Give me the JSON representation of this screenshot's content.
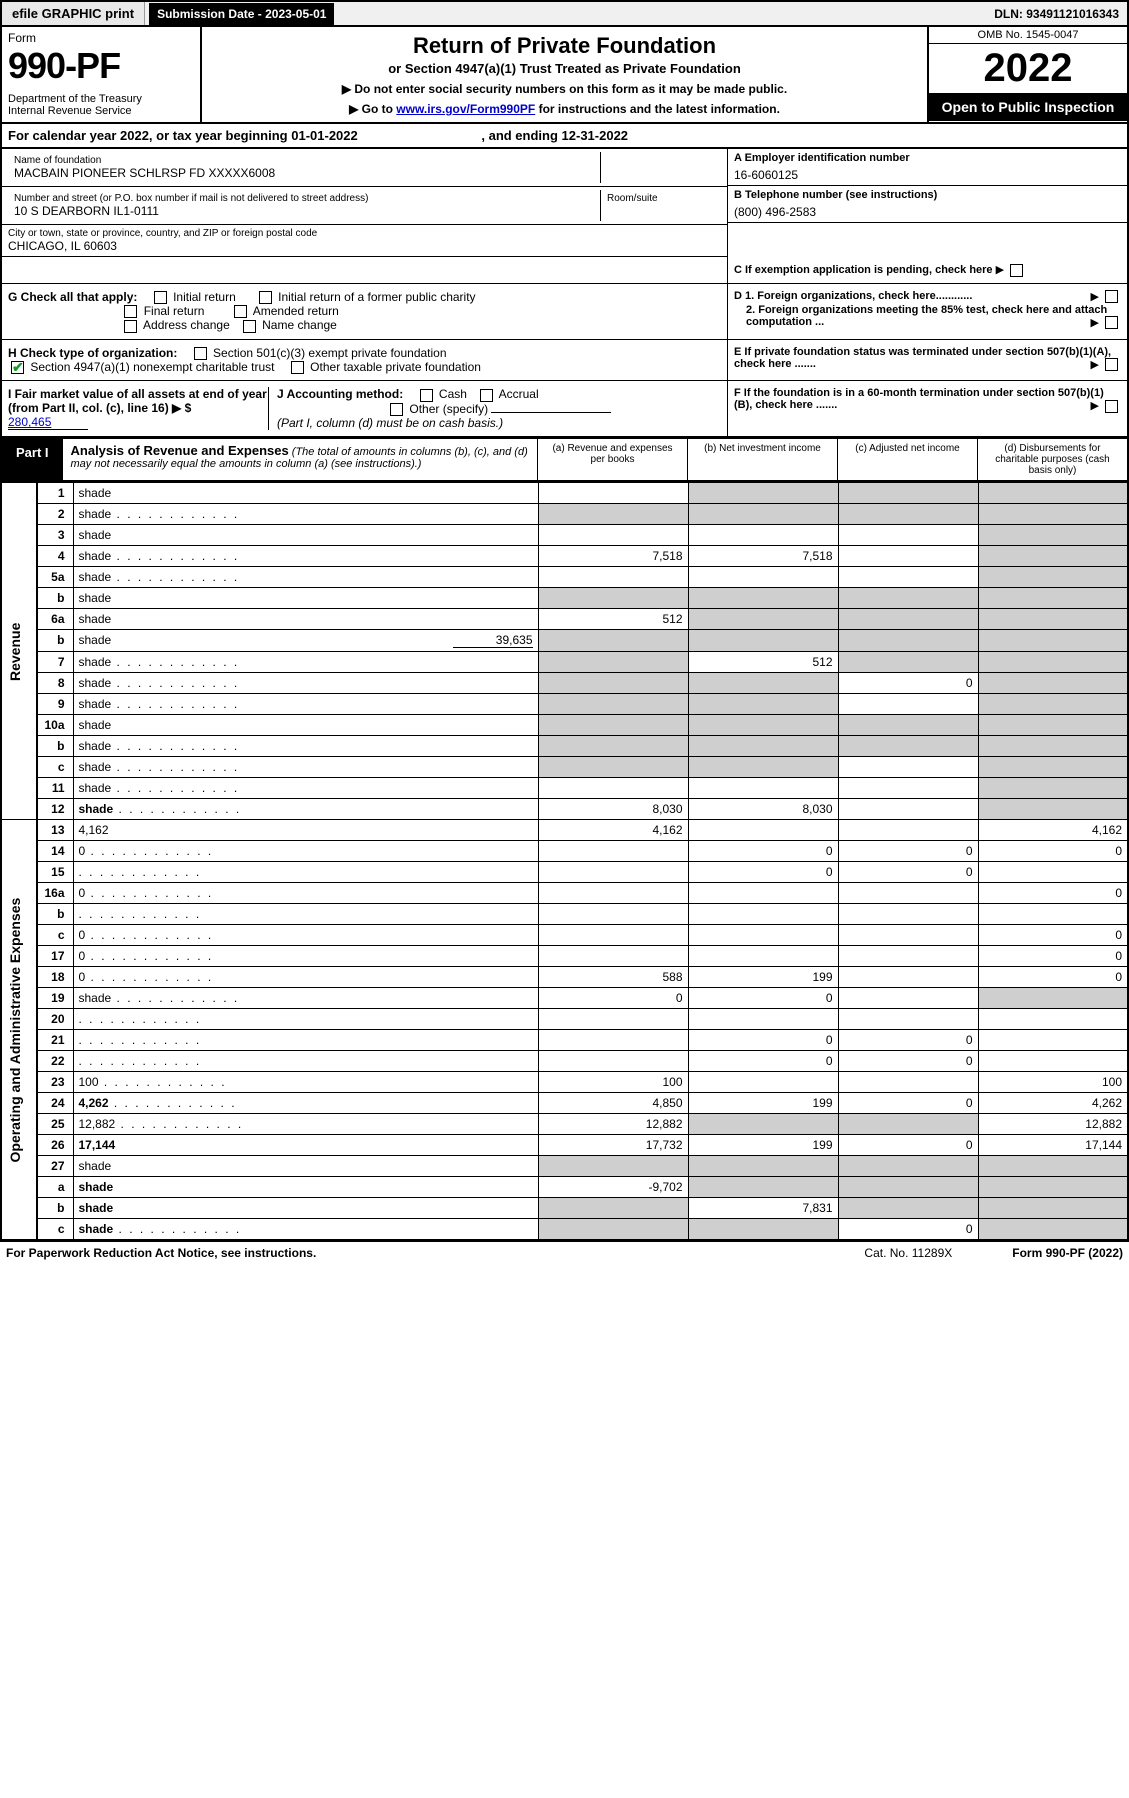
{
  "top": {
    "efile": "efile GRAPHIC print",
    "sub_label": "Submission Date - 2023-05-01",
    "dln": "DLN: 93491121016343"
  },
  "header": {
    "form_word": "Form",
    "form_num": "990-PF",
    "dept": "Department of the Treasury\nInternal Revenue Service",
    "title": "Return of Private Foundation",
    "subtitle": "or Section 4947(a)(1) Trust Treated as Private Foundation",
    "note1": "▶ Do not enter social security numbers on this form as it may be made public.",
    "note2_pre": "▶ Go to ",
    "note2_link": "www.irs.gov/Form990PF",
    "note2_post": " for instructions and the latest information.",
    "omb": "OMB No. 1545-0047",
    "year": "2022",
    "open": "Open to Public Inspection"
  },
  "cal_year": {
    "pre": "For calendar year 2022, or tax year beginning ",
    "begin": "01-01-2022",
    "mid": ", and ending ",
    "end": "12-31-2022"
  },
  "info": {
    "name_label": "Name of foundation",
    "name": "MACBAIN PIONEER SCHLRSP FD XXXXX6008",
    "addr_label": "Number and street (or P.O. box number if mail is not delivered to street address)",
    "addr": "10 S DEARBORN IL1-0111",
    "room": "Room/suite",
    "city_label": "City or town, state or province, country, and ZIP or foreign postal code",
    "city": "CHICAGO, IL  60603",
    "a_label": "A Employer identification number",
    "a_val": "16-6060125",
    "b_label": "B Telephone number (see instructions)",
    "b_val": "(800) 496-2583",
    "c_label": "C If exemption application is pending, check here",
    "d1": "D 1. Foreign organizations, check here............",
    "d2": "2. Foreign organizations meeting the 85% test, check here and attach computation ...",
    "e": "E   If private foundation status was terminated under section 507(b)(1)(A), check here .......",
    "f": "F   If the foundation is in a 60-month termination under section 507(b)(1)(B), check here .......",
    "g_label": "G Check all that apply:",
    "g_opts": [
      "Initial return",
      "Final return",
      "Address change",
      "Initial return of a former public charity",
      "Amended return",
      "Name change"
    ],
    "h_label": "H Check type of organization:",
    "h_opts": [
      "Section 501(c)(3) exempt private foundation",
      "Section 4947(a)(1) nonexempt charitable trust",
      "Other taxable private foundation"
    ],
    "i_label": "I Fair market value of all assets at end of year (from Part II, col. (c), line 16) ▶ $",
    "i_val": "280,465",
    "j_label": "J Accounting method:",
    "j_opts": [
      "Cash",
      "Accrual",
      "Other (specify)"
    ],
    "j_note": "(Part I, column (d) must be on cash basis.)"
  },
  "part1": {
    "tag": "Part I",
    "title": "Analysis of Revenue and Expenses",
    "note": " (The total of amounts in columns (b), (c), and (d) may not necessarily equal the amounts in column (a) (see instructions).)",
    "cols": {
      "a": "(a)   Revenue and expenses per books",
      "b": "(b)  Net investment income",
      "c": "(c)  Adjusted net income",
      "d": "(d)  Disbursements for charitable purposes (cash basis only)"
    }
  },
  "side_labels": {
    "rev": "Revenue",
    "exp": "Operating and Administrative Expenses"
  },
  "rows": [
    {
      "n": "1",
      "d": "shade",
      "a": "",
      "b": "shade",
      "c": "shade"
    },
    {
      "n": "2",
      "d": "shade",
      "dots": true,
      "a": "shade",
      "b": "shade",
      "c": "shade"
    },
    {
      "n": "3",
      "d": "shade",
      "a": "",
      "b": "",
      "c": ""
    },
    {
      "n": "4",
      "d": "shade",
      "dots": true,
      "a": "7,518",
      "b": "7,518",
      "c": ""
    },
    {
      "n": "5a",
      "d": "shade",
      "dots": true,
      "a": "",
      "b": "",
      "c": ""
    },
    {
      "n": "b",
      "d": "shade",
      "a": "shade",
      "b": "shade",
      "c": "shade"
    },
    {
      "n": "6a",
      "d": "shade",
      "a": "512",
      "b": "shade",
      "c": "shade"
    },
    {
      "n": "b",
      "d": "shade",
      "extra": "39,635",
      "a": "shade",
      "b": "shade",
      "c": "shade"
    },
    {
      "n": "7",
      "d": "shade",
      "dots": true,
      "a": "shade",
      "b": "512",
      "c": "shade"
    },
    {
      "n": "8",
      "d": "shade",
      "dots": true,
      "a": "shade",
      "b": "shade",
      "c": "0"
    },
    {
      "n": "9",
      "d": "shade",
      "dots": true,
      "a": "shade",
      "b": "shade",
      "c": ""
    },
    {
      "n": "10a",
      "d": "shade",
      "a": "shade",
      "b": "shade",
      "c": "shade"
    },
    {
      "n": "b",
      "d": "shade",
      "dots": true,
      "a": "shade",
      "b": "shade",
      "c": "shade"
    },
    {
      "n": "c",
      "d": "shade",
      "dots": true,
      "a": "shade",
      "b": "shade",
      "c": ""
    },
    {
      "n": "11",
      "d": "shade",
      "dots": true,
      "a": "",
      "b": "",
      "c": ""
    },
    {
      "n": "12",
      "d": "shade",
      "dots": true,
      "bold": true,
      "a": "8,030",
      "b": "8,030",
      "c": ""
    },
    {
      "n": "13",
      "d": "4,162",
      "a": "4,162",
      "b": "",
      "c": ""
    },
    {
      "n": "14",
      "d": "0",
      "dots": true,
      "a": "",
      "b": "0",
      "c": "0"
    },
    {
      "n": "15",
      "d": "",
      "dots": true,
      "a": "",
      "b": "0",
      "c": "0"
    },
    {
      "n": "16a",
      "d": "0",
      "dots": true,
      "a": "",
      "b": "",
      "c": ""
    },
    {
      "n": "b",
      "d": "",
      "dots": true,
      "a": "",
      "b": "",
      "c": ""
    },
    {
      "n": "c",
      "d": "0",
      "dots": true,
      "a": "",
      "b": "",
      "c": ""
    },
    {
      "n": "17",
      "d": "0",
      "dots": true,
      "a": "",
      "b": "",
      "c": ""
    },
    {
      "n": "18",
      "d": "0",
      "dots": true,
      "a": "588",
      "b": "199",
      "c": ""
    },
    {
      "n": "19",
      "d": "shade",
      "dots": true,
      "a": "0",
      "b": "0",
      "c": ""
    },
    {
      "n": "20",
      "d": "",
      "dots": true,
      "a": "",
      "b": "",
      "c": ""
    },
    {
      "n": "21",
      "d": "",
      "dots": true,
      "a": "",
      "b": "0",
      "c": "0"
    },
    {
      "n": "22",
      "d": "",
      "dots": true,
      "a": "",
      "b": "0",
      "c": "0"
    },
    {
      "n": "23",
      "d": "100",
      "dots": true,
      "a": "100",
      "b": "",
      "c": ""
    },
    {
      "n": "24",
      "d": "4,262",
      "dots": true,
      "bold": true,
      "a": "4,850",
      "b": "199",
      "c": "0"
    },
    {
      "n": "25",
      "d": "12,882",
      "dots": true,
      "a": "12,882",
      "b": "shade",
      "c": "shade"
    },
    {
      "n": "26",
      "d": "17,144",
      "bold": true,
      "a": "17,732",
      "b": "199",
      "c": "0"
    },
    {
      "n": "27",
      "d": "shade",
      "a": "shade",
      "b": "shade",
      "c": "shade"
    },
    {
      "n": "a",
      "d": "shade",
      "bold": true,
      "a": "-9,702",
      "b": "shade",
      "c": "shade"
    },
    {
      "n": "b",
      "d": "shade",
      "bold": true,
      "a": "shade",
      "b": "7,831",
      "c": "shade"
    },
    {
      "n": "c",
      "d": "shade",
      "dots": true,
      "bold": true,
      "a": "shade",
      "b": "shade",
      "c": "0"
    }
  ],
  "footer": {
    "left": "For Paperwork Reduction Act Notice, see instructions.",
    "mid": "Cat. No. 11289X",
    "right": "Form 990-PF (2022)"
  }
}
